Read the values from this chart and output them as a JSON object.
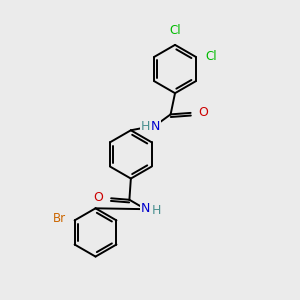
{
  "background_color": "#ebebeb",
  "bond_color": "#000000",
  "atom_colors": {
    "Cl": "#00bb00",
    "Br": "#cc6600",
    "N": "#0000cc",
    "O": "#cc0000",
    "H": "#4a9090",
    "C": "#000000"
  },
  "figsize": [
    3.0,
    3.0
  ],
  "dpi": 100,
  "lw": 1.4,
  "fs": 8.5,
  "r_ring": 0.82
}
